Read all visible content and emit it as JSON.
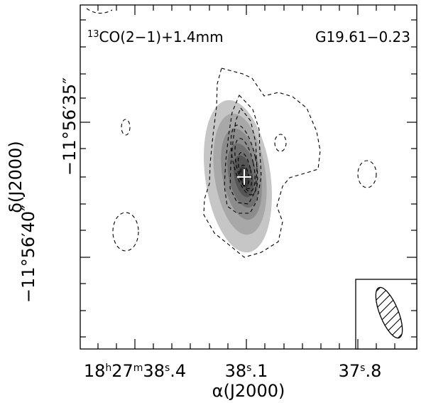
{
  "chart_data": {
    "type": "heatmap",
    "title_left": "13CO(2-1)+1.4mm",
    "title_left_sup": "13",
    "title_left_rest": "CO(2−1)+1.4mm",
    "title_right": "G19.61−0.23",
    "xlabel": "α(J2000)",
    "ylabel": "δ(J2000)",
    "x_ticks": [
      {
        "h": "18",
        "hu": "h",
        "m": "27",
        "mu": "m",
        "s": "38",
        "su": "s",
        "frac": ".4"
      },
      {
        "s": "38",
        "su": "s",
        "frac": ".1"
      },
      {
        "s": "37",
        "su": "s",
        "frac": ".8"
      }
    ],
    "y_ticks": [
      {
        "label": "−11°56′35″"
      },
      {
        "label": "−11°56′40″"
      }
    ],
    "grayscale": "1.4 mm continuum",
    "contours": "13CO(2−1) dashed",
    "marker": "cross",
    "beam": "hatched ellipse"
  },
  "colors": {
    "gray_levels": [
      "#c6c6c6",
      "#a8a8a8",
      "#8c8c8c",
      "#707070",
      "#555555",
      "#3c3c3c"
    ]
  }
}
